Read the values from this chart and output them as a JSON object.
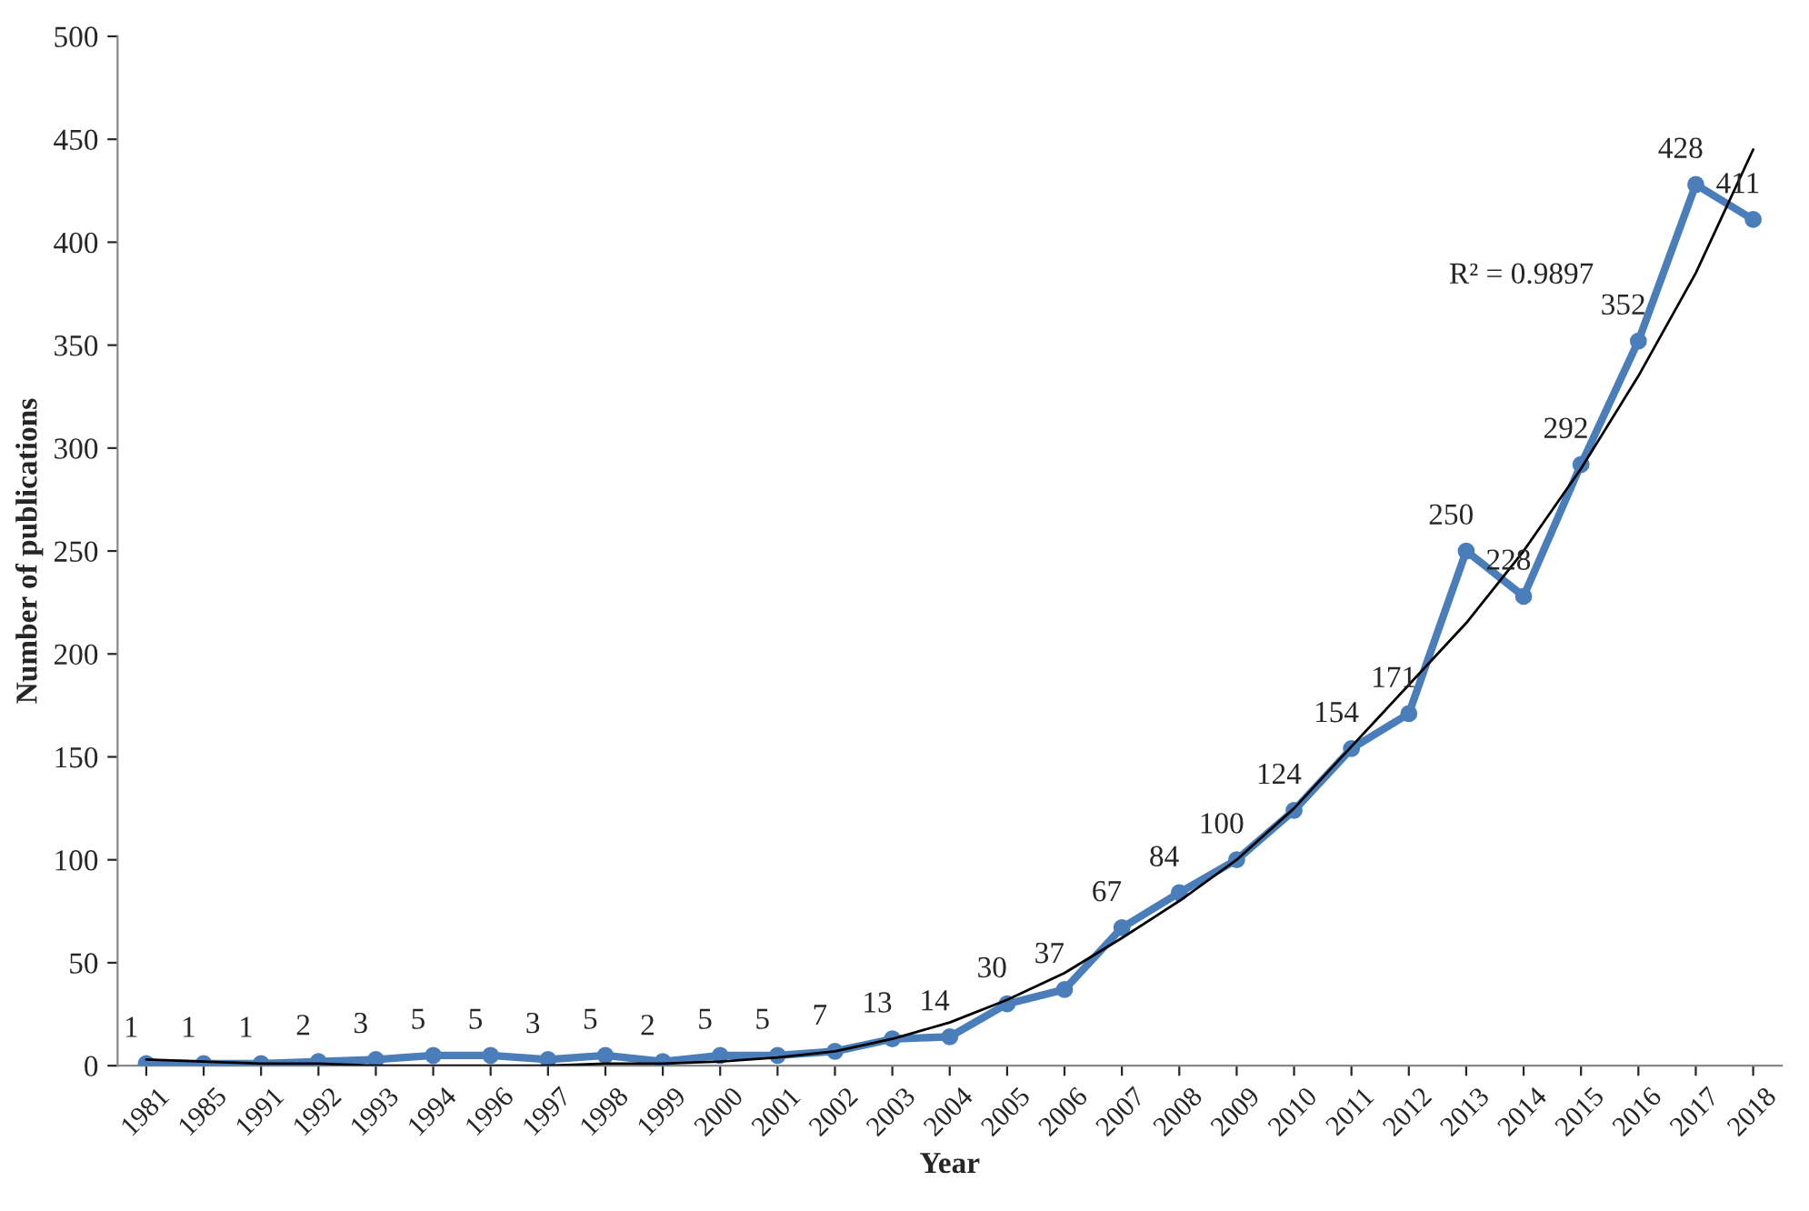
{
  "chart_data": {
    "type": "line",
    "xlabel": "Year",
    "ylabel": "Number of publications",
    "categories": [
      "1981",
      "1985",
      "1991",
      "1992",
      "1993",
      "1994",
      "1996",
      "1997",
      "1998",
      "1999",
      "2000",
      "2001",
      "2002",
      "2003",
      "2004",
      "2005",
      "2006",
      "2007",
      "2008",
      "2009",
      "2010",
      "2011",
      "2012",
      "2013",
      "2014",
      "2015",
      "2016",
      "2017",
      "2018"
    ],
    "series": [
      {
        "color": "#4a7ebb",
        "values": [
          1,
          1,
          1,
          2,
          3,
          5,
          5,
          3,
          5,
          2,
          5,
          5,
          7,
          13,
          14,
          30,
          37,
          67,
          84,
          100,
          124,
          154,
          171,
          250,
          228,
          292,
          352,
          428,
          411
        ],
        "value_labels": [
          "1",
          "1",
          "1",
          "2",
          "3",
          "5",
          "5",
          "3",
          "5",
          "2",
          "5",
          "5",
          "7",
          "13",
          "14",
          "30",
          "37",
          "67",
          "84",
          "100",
          "124",
          "154",
          "171",
          "250",
          "228",
          "292",
          "352",
          "428",
          "411"
        ]
      },
      {
        "type": "line",
        "marker": "none",
        "color": "#000000",
        "values": [
          3,
          2,
          1,
          1,
          0,
          0,
          0,
          0,
          1,
          1,
          2,
          4,
          7,
          13,
          21,
          32,
          45,
          62,
          80,
          100,
          125,
          155,
          185,
          215,
          250,
          290,
          335,
          385,
          445
        ]
      }
    ],
    "annotations": [
      "R² = 0.9897"
    ],
    "ylim": [
      0,
      500
    ],
    "yticks": [
      0,
      50,
      100,
      150,
      200,
      250,
      300,
      350,
      400,
      450,
      500
    ],
    "marker": "circle",
    "grid": false,
    "legend": false
  }
}
